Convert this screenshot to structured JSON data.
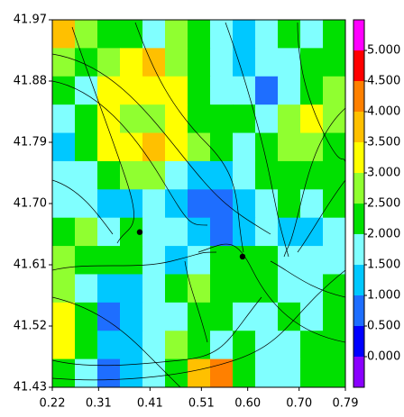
{
  "chart_data": {
    "type": "contour",
    "xlim": [
      0.22,
      0.79
    ],
    "ylim": [
      41.43,
      41.97
    ],
    "xticks": [
      {
        "value": 0.22,
        "label": "0.22"
      },
      {
        "value": 0.31,
        "label": "0.31"
      },
      {
        "value": 0.41,
        "label": "0.41"
      },
      {
        "value": 0.51,
        "label": "0.51"
      },
      {
        "value": 0.6,
        "label": "0.60"
      },
      {
        "value": 0.7,
        "label": "0.70"
      },
      {
        "value": 0.79,
        "label": "0.79"
      }
    ],
    "yticks": [
      {
        "value": 41.43,
        "label": "41.43"
      },
      {
        "value": 41.52,
        "label": "41.52"
      },
      {
        "value": 41.61,
        "label": "41.61"
      },
      {
        "value": 41.7,
        "label": "41.70"
      },
      {
        "value": 41.79,
        "label": "41.79"
      },
      {
        "value": 41.88,
        "label": "41.88"
      },
      {
        "value": 41.97,
        "label": "41.97"
      }
    ],
    "z": [
      [
        3.5,
        2.5,
        2,
        2,
        1.5,
        2.5,
        2,
        1.5,
        1,
        1.5,
        2,
        1.5,
        2
      ],
      [
        2.5,
        2,
        2.5,
        3,
        3.5,
        2.5,
        2,
        1.5,
        1,
        1.5,
        1.5,
        2,
        2
      ],
      [
        2,
        1.5,
        3,
        3,
        3,
        3,
        2,
        1.5,
        1.5,
        0.5,
        1.5,
        2,
        2.5
      ],
      [
        1.5,
        2,
        3,
        2.5,
        2.5,
        3,
        2,
        2,
        2,
        1.5,
        2.5,
        3,
        2.5
      ],
      [
        1,
        2,
        3,
        3,
        3.5,
        3,
        2.5,
        2,
        1.5,
        2,
        2.5,
        2.5,
        2
      ],
      [
        1.5,
        1.5,
        2,
        2.5,
        2.5,
        1.5,
        1,
        1,
        1.5,
        2,
        2,
        2,
        2
      ],
      [
        1.5,
        1.5,
        1,
        1,
        1.5,
        1,
        0.5,
        0.5,
        1,
        1.5,
        2,
        1.5,
        2
      ],
      [
        2,
        2.5,
        1.5,
        2,
        1.5,
        1.5,
        1,
        0.5,
        1,
        1.5,
        1,
        1,
        1.5
      ],
      [
        2.5,
        2,
        2,
        2,
        1.5,
        1,
        1.5,
        2,
        2,
        2,
        1.5,
        1.5,
        1.5
      ],
      [
        2.5,
        1.5,
        1,
        1,
        1.5,
        2,
        2.5,
        2,
        2,
        2,
        1.5,
        1.5,
        2
      ],
      [
        3,
        2,
        0.5,
        1,
        1.5,
        1.5,
        2,
        2,
        1.5,
        1.5,
        2,
        1.5,
        2
      ],
      [
        3,
        2,
        1,
        1,
        1.5,
        2.5,
        2,
        1.5,
        2,
        1.5,
        1.5,
        2,
        2
      ],
      [
        2,
        1.5,
        0.5,
        1,
        1.5,
        2,
        3.5,
        4,
        2,
        1.5,
        1.5,
        2,
        2
      ]
    ],
    "clim": [
      -0.5,
      5.5
    ],
    "colors": [
      "#8a00ff",
      "#0000ff",
      "#1e6eff",
      "#00c8ff",
      "#80ffff",
      "#00e000",
      "#90ff30",
      "#ffff00",
      "#ffc000",
      "#ff8000",
      "#ff0000",
      "#ff00ff"
    ],
    "colorbar_ticks": [
      {
        "value": 0,
        "label": "0.000"
      },
      {
        "value": 0.5,
        "label": "0.500"
      },
      {
        "value": 1,
        "label": "1.000"
      },
      {
        "value": 1.5,
        "label": "1.500"
      },
      {
        "value": 2,
        "label": "2.000"
      },
      {
        "value": 2.5,
        "label": "2.500"
      },
      {
        "value": 3,
        "label": "3.000"
      },
      {
        "value": 3.5,
        "label": "3.500"
      },
      {
        "value": 4,
        "label": "4.000"
      },
      {
        "value": 4.5,
        "label": "4.500"
      },
      {
        "value": 5,
        "label": "5.000"
      }
    ],
    "points": {
      "x": [
        0.39,
        0.59
      ],
      "y": [
        41.658,
        41.622
      ]
    }
  }
}
